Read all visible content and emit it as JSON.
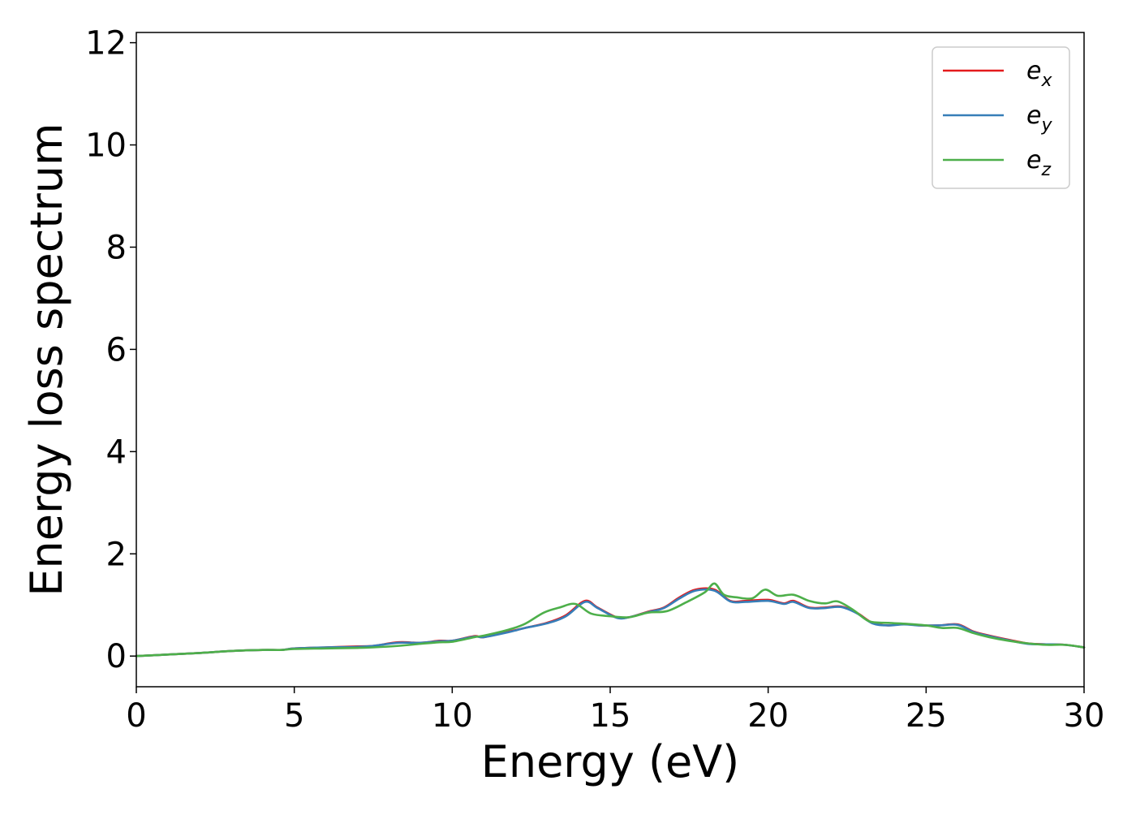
{
  "chart_data": {
    "type": "line",
    "title": "",
    "xlabel": "Energy (eV)",
    "ylabel": "Energy loss spectrum",
    "xlim": [
      0,
      30
    ],
    "ylim": [
      -0.6,
      12.2
    ],
    "xticks": [
      0,
      5,
      10,
      15,
      20,
      25,
      30
    ],
    "yticks": [
      0,
      2,
      4,
      6,
      8,
      10,
      12
    ],
    "grid": false,
    "legend": "top-right",
    "series": [
      {
        "name": "e_x",
        "label_base": "e",
        "label_sub": "x",
        "color": "#e41a1c",
        "x": [
          0,
          1,
          2,
          3,
          4,
          4.6,
          5,
          6,
          7,
          7.5,
          8.3,
          9,
          9.6,
          10,
          10.7,
          11,
          11.8,
          12.3,
          13,
          13.6,
          14.2,
          14.6,
          15.2,
          15.6,
          16.2,
          16.7,
          17.2,
          17.7,
          18.3,
          18.8,
          19.3,
          20,
          20.5,
          20.8,
          21.3,
          21.8,
          22.3,
          22.8,
          23.3,
          23.8,
          24.3,
          24.8,
          25.4,
          26,
          26.5,
          27,
          27.6,
          28.2,
          28.8,
          29.4,
          30
        ],
        "y": [
          0.0,
          0.03,
          0.06,
          0.1,
          0.12,
          0.12,
          0.15,
          0.17,
          0.19,
          0.2,
          0.27,
          0.26,
          0.3,
          0.3,
          0.39,
          0.37,
          0.48,
          0.55,
          0.65,
          0.8,
          1.08,
          0.95,
          0.76,
          0.76,
          0.87,
          0.95,
          1.15,
          1.3,
          1.3,
          1.08,
          1.08,
          1.1,
          1.03,
          1.08,
          0.95,
          0.95,
          0.97,
          0.85,
          0.65,
          0.6,
          0.63,
          0.6,
          0.6,
          0.62,
          0.48,
          0.4,
          0.32,
          0.25,
          0.23,
          0.22,
          0.17
        ]
      },
      {
        "name": "e_y",
        "label_base": "e",
        "label_sub": "y",
        "color": "#377eb8",
        "x": [
          0,
          1,
          2,
          3,
          4,
          4.6,
          5,
          6,
          7,
          7.5,
          8.3,
          9,
          9.6,
          10,
          10.7,
          11,
          11.8,
          12.3,
          13,
          13.6,
          14.2,
          14.6,
          15.2,
          15.6,
          16.2,
          16.7,
          17.2,
          17.7,
          18.3,
          18.8,
          19.3,
          20,
          20.5,
          20.8,
          21.3,
          21.8,
          22.3,
          22.8,
          23.3,
          23.8,
          24.3,
          24.8,
          25.4,
          26,
          26.5,
          27,
          27.6,
          28.2,
          28.8,
          29.4,
          30
        ],
        "y": [
          0.0,
          0.03,
          0.06,
          0.1,
          0.12,
          0.12,
          0.15,
          0.17,
          0.18,
          0.2,
          0.26,
          0.26,
          0.29,
          0.3,
          0.38,
          0.37,
          0.47,
          0.55,
          0.64,
          0.78,
          1.06,
          0.94,
          0.75,
          0.76,
          0.86,
          0.94,
          1.13,
          1.28,
          1.28,
          1.07,
          1.06,
          1.08,
          1.02,
          1.06,
          0.94,
          0.94,
          0.96,
          0.84,
          0.64,
          0.6,
          0.62,
          0.6,
          0.6,
          0.61,
          0.47,
          0.39,
          0.31,
          0.24,
          0.23,
          0.22,
          0.17
        ]
      },
      {
        "name": "e_z",
        "label_base": "e",
        "label_sub": "z",
        "color": "#4daf4a",
        "x": [
          0,
          1,
          2,
          3,
          4,
          4.6,
          5,
          6,
          7,
          7.5,
          8.3,
          9,
          9.6,
          10,
          10.7,
          11,
          11.8,
          12.3,
          12.9,
          13.4,
          13.9,
          14.4,
          15,
          15.6,
          16.2,
          16.8,
          17.4,
          18,
          18.3,
          18.6,
          19,
          19.5,
          19.9,
          20.3,
          20.8,
          21.3,
          21.8,
          22.2,
          22.7,
          23.2,
          23.8,
          24.4,
          25,
          25.5,
          26,
          26.5,
          27,
          27.6,
          28.2,
          28.8,
          29.4,
          30
        ],
        "y": [
          0.0,
          0.03,
          0.06,
          0.1,
          0.12,
          0.12,
          0.14,
          0.15,
          0.16,
          0.17,
          0.2,
          0.24,
          0.27,
          0.28,
          0.37,
          0.4,
          0.52,
          0.63,
          0.85,
          0.95,
          1.02,
          0.83,
          0.78,
          0.76,
          0.85,
          0.88,
          1.05,
          1.25,
          1.42,
          1.2,
          1.15,
          1.13,
          1.3,
          1.18,
          1.2,
          1.08,
          1.03,
          1.07,
          0.9,
          0.68,
          0.65,
          0.63,
          0.6,
          0.55,
          0.55,
          0.45,
          0.37,
          0.3,
          0.25,
          0.22,
          0.22,
          0.17
        ]
      }
    ]
  }
}
